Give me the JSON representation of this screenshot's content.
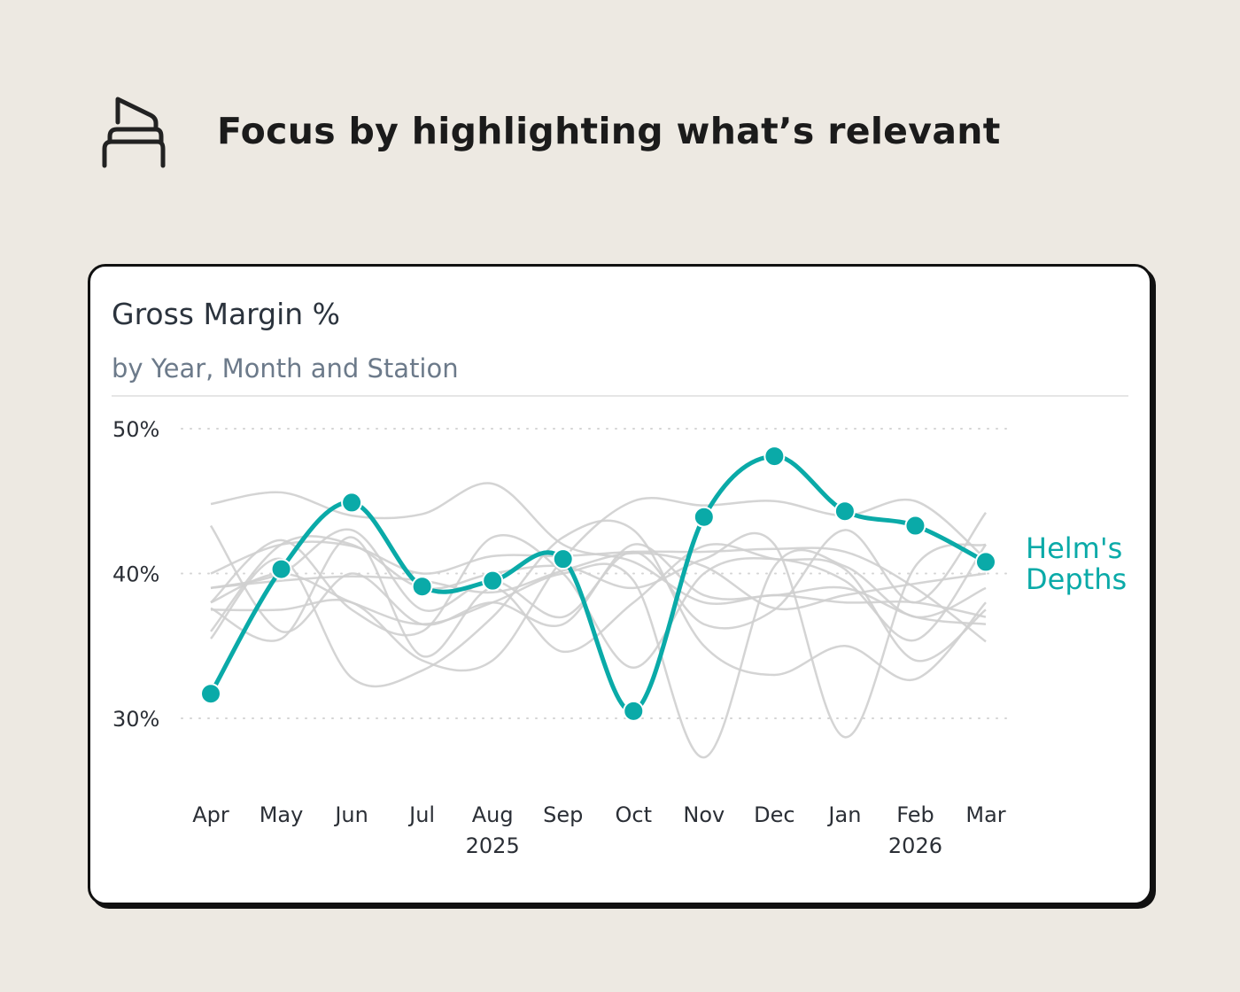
{
  "header": {
    "icon": "highlighter-icon",
    "title": "Focus by highlighting what’s relevant"
  },
  "card": {
    "title": "Gross Margin %",
    "subtitle": "by Year, Month and Station"
  },
  "colors": {
    "highlight": "#0aaaa8",
    "context": "#cfcfcf",
    "background": "#ede9e2"
  },
  "chart_data": {
    "type": "line",
    "ylim": [
      30,
      50
    ],
    "y_ticks": [
      "30%",
      "40%",
      "50%"
    ],
    "y_tick_values": [
      30,
      40,
      50
    ],
    "grid": "horizontal dotted",
    "categories": [
      "Apr",
      "May",
      "Jun",
      "Jul",
      "Aug",
      "Sep",
      "Oct",
      "Nov",
      "Dec",
      "Jan",
      "Feb",
      "Mar"
    ],
    "year_labels": [
      {
        "label": "2025",
        "under": "Aug"
      },
      {
        "label": "2026",
        "under": "Feb"
      }
    ],
    "highlight": {
      "name": "Helm's Depths",
      "name_lines": [
        "Helm's",
        "Depths"
      ],
      "values": [
        31.7,
        40.3,
        44.9,
        39.1,
        39.5,
        41.0,
        30.5,
        43.9,
        48.1,
        44.3,
        43.3,
        40.8
      ]
    },
    "series": [
      {
        "values": [
          44.8,
          45.6,
          44.0,
          44.1,
          46.2,
          42.0,
          40.8,
          38.0,
          38.5,
          38.0,
          38.0,
          37.0
        ]
      },
      {
        "values": [
          39.0,
          39.5,
          39.8,
          39.5,
          38.7,
          40.2,
          41.4,
          40.5,
          37.6,
          38.5,
          39.3,
          40.0
        ]
      },
      {
        "values": [
          38.0,
          40.0,
          38.0,
          36.5,
          38.0,
          40.0,
          39.5,
          27.3,
          40.5,
          40.5,
          37.0,
          39.0
        ]
      },
      {
        "values": [
          36.0,
          42.0,
          42.0,
          39.0,
          40.0,
          40.5,
          39.0,
          41.0,
          42.0,
          28.7,
          40.5,
          42.0
        ]
      },
      {
        "values": [
          35.5,
          41.0,
          32.8,
          33.3,
          37.0,
          42.5,
          43.0,
          35.0,
          33.0,
          35.0,
          32.7,
          38.0
        ]
      },
      {
        "values": [
          37.5,
          37.5,
          38.0,
          34.0,
          34.0,
          41.0,
          45.0,
          44.7,
          45.0,
          44.0,
          45.0,
          41.0
        ]
      },
      {
        "values": [
          38.0,
          42.3,
          37.5,
          36.0,
          42.5,
          40.0,
          33.5,
          40.0,
          41.0,
          39.5,
          35.4,
          42.0
        ]
      },
      {
        "values": [
          40.0,
          42.0,
          41.9,
          40.0,
          41.2,
          41.2,
          41.5,
          41.5,
          41.7,
          41.5,
          39.0,
          35.3
        ]
      },
      {
        "values": [
          39.0,
          40.0,
          43.0,
          37.5,
          39.5,
          37.0,
          41.5,
          36.5,
          37.5,
          43.0,
          38.0,
          44.2
        ]
      },
      {
        "values": [
          37.6,
          35.5,
          42.5,
          34.3,
          39.0,
          34.6,
          38.0,
          41.9,
          41.0,
          40.3,
          34.0,
          37.5
        ]
      },
      {
        "values": [
          43.3,
          36.0,
          40.0,
          36.5,
          38.0,
          36.5,
          42.0,
          38.5,
          38.5,
          39.0,
          37.0,
          36.5
        ]
      }
    ]
  }
}
